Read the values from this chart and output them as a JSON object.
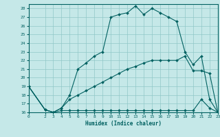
{
  "xlabel": "Humidex (Indice chaleur)",
  "background_color": "#c5e8e8",
  "grid_color": "#90c8c8",
  "line_color": "#006060",
  "xlim": [
    0,
    23
  ],
  "ylim": [
    16,
    28.5
  ],
  "xticks": [
    0,
    2,
    3,
    4,
    5,
    6,
    7,
    8,
    9,
    10,
    11,
    12,
    13,
    14,
    15,
    16,
    17,
    18,
    19,
    20,
    21,
    22,
    23
  ],
  "yticks": [
    16,
    17,
    18,
    19,
    20,
    21,
    22,
    23,
    24,
    25,
    26,
    27,
    28
  ],
  "curve1_x": [
    0,
    2,
    3,
    4,
    5,
    6,
    7,
    8,
    9,
    10,
    11,
    12,
    13,
    14,
    15,
    16,
    17,
    18,
    19,
    20,
    21,
    22,
    23
  ],
  "curve1_y": [
    19,
    16.3,
    16.0,
    16.5,
    18.0,
    21.0,
    21.7,
    22.5,
    23.0,
    27.0,
    27.3,
    27.5,
    28.3,
    27.3,
    28.0,
    27.5,
    27.0,
    26.5,
    23.0,
    21.5,
    22.5,
    17.5,
    16.0
  ],
  "curve2_x": [
    0,
    2,
    3,
    4,
    5,
    6,
    7,
    8,
    9,
    10,
    11,
    12,
    13,
    14,
    15,
    16,
    17,
    18,
    19,
    20,
    21,
    22,
    23
  ],
  "curve2_y": [
    19,
    16.3,
    16.0,
    16.5,
    17.5,
    18.0,
    18.5,
    19.0,
    19.5,
    20.0,
    20.5,
    21.0,
    21.3,
    21.7,
    22.0,
    22.0,
    22.0,
    22.0,
    22.5,
    20.8,
    20.8,
    20.5,
    16.0
  ],
  "curve3_x": [
    0,
    2,
    3,
    4,
    5,
    6,
    7,
    8,
    9,
    10,
    11,
    12,
    13,
    14,
    15,
    16,
    17,
    18,
    19,
    20,
    21,
    22,
    23
  ],
  "curve3_y": [
    19,
    16.3,
    16.0,
    16.2,
    16.2,
    16.2,
    16.2,
    16.2,
    16.2,
    16.2,
    16.2,
    16.2,
    16.2,
    16.2,
    16.2,
    16.2,
    16.2,
    16.2,
    16.2,
    16.2,
    17.5,
    16.5,
    16.0
  ]
}
